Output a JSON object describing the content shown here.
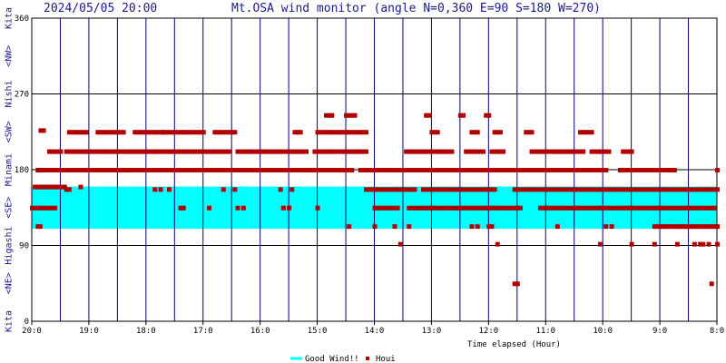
{
  "header": {
    "datetime": "2024/05/05 20:00",
    "title": "Mt.OSA wind monitor (angle N=0,360 E=90 S=180 W=270)"
  },
  "side_labels": [
    {
      "text": "Kita",
      "angle": 360
    },
    {
      "text": "<NW>",
      "angle": 315
    },
    {
      "text": "Nishi",
      "angle": 270
    },
    {
      "text": "<SW>",
      "angle": 225
    },
    {
      "text": "Minami",
      "angle": 180
    },
    {
      "text": "<SE>",
      "angle": 135
    },
    {
      "text": "Higashi",
      "angle": 90
    },
    {
      "text": "<NE>",
      "angle": 45
    },
    {
      "text": "Kita",
      "angle": 0
    }
  ],
  "chart_data": {
    "type": "scatter",
    "xlabel": "Time elapsed (Hour)",
    "ylabel": "",
    "ylim": [
      0,
      360
    ],
    "yticks": [
      0,
      90,
      180,
      270,
      360
    ],
    "xlim": [
      0,
      12
    ],
    "x_ticks": [
      {
        "pos": 0,
        "label": "20:0"
      },
      {
        "pos": 1,
        "label": "19:0"
      },
      {
        "pos": 2,
        "label": "18:0"
      },
      {
        "pos": 3,
        "label": "17:0"
      },
      {
        "pos": 4,
        "label": "16:0"
      },
      {
        "pos": 5,
        "label": "15:0"
      },
      {
        "pos": 6,
        "label": "14:0"
      },
      {
        "pos": 7,
        "label": "13:0"
      },
      {
        "pos": 8,
        "label": "12:0"
      },
      {
        "pos": 9,
        "label": "11:0"
      },
      {
        "pos": 10,
        "label": "10:0"
      },
      {
        "pos": 11,
        "label": "9:0"
      },
      {
        "pos": 12,
        "label": "8:0"
      }
    ],
    "good_wind_band": [
      110,
      160
    ],
    "grid": true,
    "legend": "bottom-center",
    "colors": {
      "band": "#00ffff",
      "points": "#b00000",
      "grid": "#000080",
      "frame": "#000000"
    },
    "series": [
      {
        "name": "Good Wind!!",
        "kind": "band"
      },
      {
        "name": "Houi",
        "kind": "points",
        "clusters": [
          {
            "x0": 0.05,
            "x1": 0.6,
            "y": 160,
            "step": 0.04
          },
          {
            "x0": 0.0,
            "x1": 0.4,
            "y": 135,
            "step": 0.05
          },
          {
            "x0": 0.1,
            "x1": 0.15,
            "y": 113,
            "step": 0.04
          },
          {
            "x0": 0.1,
            "x1": 12.0,
            "y": 180,
            "step": 0.05,
            "gaps": [
              [
                5.6,
                5.7
              ],
              [
                10.1,
                10.3
              ],
              [
                11.3,
                12
              ]
            ]
          },
          {
            "x0": 0.35,
            "x1": 0.5,
            "y": 202,
            "step": 0.05
          },
          {
            "x0": 0.6,
            "x1": 5.85,
            "y": 202,
            "step": 0.05,
            "gaps": [
              [
                3.45,
                3.55
              ],
              [
                4.8,
                4.9
              ]
            ]
          },
          {
            "x0": 6.55,
            "x1": 7.35,
            "y": 202,
            "step": 0.05
          },
          {
            "x0": 7.6,
            "x1": 7.9,
            "y": 202,
            "step": 0.05
          },
          {
            "x0": 8.05,
            "x1": 8.25,
            "y": 202,
            "step": 0.05
          },
          {
            "x0": 8.75,
            "x1": 9.65,
            "y": 202,
            "step": 0.05
          },
          {
            "x0": 9.8,
            "x1": 10.1,
            "y": 202,
            "step": 0.05
          },
          {
            "x0": 10.35,
            "x1": 10.5,
            "y": 202,
            "step": 0.05
          },
          {
            "x0": 0.65,
            "x1": 0.95,
            "y": 225,
            "step": 0.05
          },
          {
            "x0": 1.15,
            "x1": 1.6,
            "y": 225,
            "step": 0.05
          },
          {
            "x0": 1.8,
            "x1": 2.3,
            "y": 225,
            "step": 0.05
          },
          {
            "x0": 2.3,
            "x1": 3.0,
            "y": 225,
            "step": 0.05
          },
          {
            "x0": 3.2,
            "x1": 3.55,
            "y": 225,
            "step": 0.05
          },
          {
            "x0": 4.6,
            "x1": 4.7,
            "y": 225,
            "step": 0.05
          },
          {
            "x0": 5.0,
            "x1": 5.85,
            "y": 225,
            "step": 0.05
          },
          {
            "x0": 7.0,
            "x1": 7.1,
            "y": 225,
            "step": 0.05
          },
          {
            "x0": 7.7,
            "x1": 7.8,
            "y": 225,
            "step": 0.05
          },
          {
            "x0": 8.1,
            "x1": 8.2,
            "y": 225,
            "step": 0.05
          },
          {
            "x0": 8.65,
            "x1": 8.75,
            "y": 225,
            "step": 0.05
          },
          {
            "x0": 9.6,
            "x1": 9.8,
            "y": 225,
            "step": 0.05
          },
          {
            "x0": 0.15,
            "x1": 0.2,
            "y": 227,
            "step": 0.05
          },
          {
            "x0": 5.15,
            "x1": 5.25,
            "y": 245,
            "step": 0.05
          },
          {
            "x0": 5.5,
            "x1": 5.65,
            "y": 245,
            "step": 0.05
          },
          {
            "x0": 6.9,
            "x1": 6.95,
            "y": 245,
            "step": 0.05
          },
          {
            "x0": 7.5,
            "x1": 7.55,
            "y": 245,
            "step": 0.05
          },
          {
            "x0": 7.95,
            "x1": 8.0,
            "y": 245,
            "step": 0.05
          },
          {
            "x0": 5.85,
            "x1": 12.0,
            "y": 157,
            "step": 0.05,
            "gaps": [
              [
                6.7,
                6.8
              ],
              [
                8.1,
                8.4
              ]
            ]
          },
          {
            "x0": 6.0,
            "x1": 11.95,
            "y": 135,
            "step": 0.05,
            "gaps": [
              [
                6.4,
                6.55
              ],
              [
                8.6,
                8.9
              ]
            ]
          },
          {
            "x0": 10.9,
            "x1": 12.0,
            "y": 113,
            "step": 0.05
          },
          {
            "x0": 0.6,
            "x1": 0.65,
            "y": 157,
            "step": 0.05
          }
        ],
        "singles": [
          [
            0.85,
            160
          ],
          [
            2.15,
            157
          ],
          [
            2.25,
            157
          ],
          [
            2.4,
            157
          ],
          [
            3.35,
            157
          ],
          [
            3.55,
            157
          ],
          [
            4.35,
            157
          ],
          [
            4.55,
            157
          ],
          [
            2.6,
            135
          ],
          [
            2.65,
            135
          ],
          [
            3.1,
            135
          ],
          [
            3.6,
            135
          ],
          [
            3.7,
            135
          ],
          [
            4.4,
            135
          ],
          [
            4.5,
            135
          ],
          [
            5.0,
            135
          ],
          [
            5.55,
            113
          ],
          [
            6.0,
            113
          ],
          [
            6.35,
            113
          ],
          [
            6.45,
            92
          ],
          [
            6.6,
            113
          ],
          [
            7.7,
            113
          ],
          [
            7.8,
            113
          ],
          [
            8.0,
            113
          ],
          [
            8.05,
            113
          ],
          [
            8.15,
            92
          ],
          [
            8.45,
            45
          ],
          [
            8.5,
            45
          ],
          [
            9.2,
            113
          ],
          [
            9.95,
            92
          ],
          [
            10.05,
            113
          ],
          [
            10.15,
            113
          ],
          [
            10.5,
            92
          ],
          [
            10.9,
            92
          ],
          [
            11.3,
            92
          ],
          [
            11.6,
            92
          ],
          [
            11.75,
            92
          ],
          [
            11.85,
            92
          ],
          [
            11.9,
            45
          ],
          [
            12.0,
            92
          ],
          [
            11.7,
            92
          ],
          [
            0.3,
            202
          ],
          [
            6.35,
            180
          ],
          [
            6.55,
            180
          ]
        ]
      }
    ]
  },
  "legend": {
    "band_label": "Good Wind!!",
    "points_label": "Houi"
  }
}
